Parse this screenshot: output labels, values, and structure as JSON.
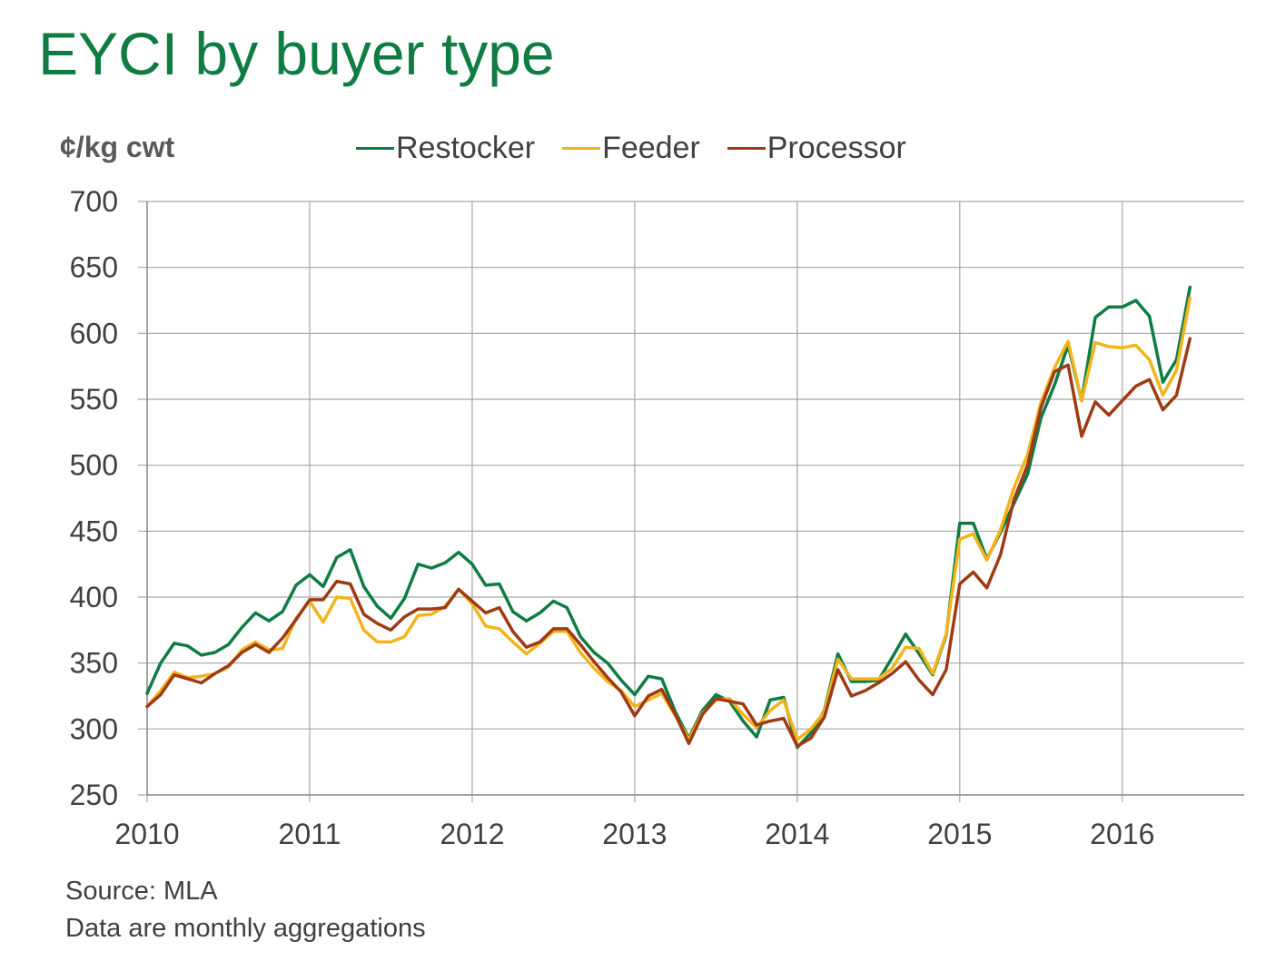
{
  "title": "EYCI by buyer type",
  "source_line1": "Source: MLA",
  "source_line2": "Data are monthly aggregations",
  "chart_data": {
    "type": "line",
    "title": "EYCI by buyer type",
    "ylabel": "¢/kg cwt",
    "xlabel": "",
    "ylim": [
      250,
      700
    ],
    "yticks": [
      "250",
      "300",
      "350",
      "400",
      "450",
      "500",
      "550",
      "600",
      "650",
      "700"
    ],
    "xlim": [
      2010,
      2016.75
    ],
    "xticks": [
      "2010",
      "2011",
      "2012",
      "2013",
      "2014",
      "2015",
      "2016"
    ],
    "grid": true,
    "legend_position": "top",
    "x_start": "2010-01",
    "x_step": "month",
    "series": [
      {
        "name": "Restocker",
        "color": "#0e7c43",
        "values": [
          327,
          350,
          365,
          363,
          356,
          358,
          364,
          377,
          388,
          382,
          389,
          409,
          417,
          408,
          430,
          436,
          408,
          393,
          384,
          399,
          425,
          422,
          426,
          434,
          425,
          409,
          410,
          389,
          382,
          388,
          397,
          392,
          370,
          358,
          350,
          337,
          326,
          340,
          338,
          313,
          293,
          314,
          326,
          321,
          306,
          294,
          322,
          324,
          286,
          297,
          314,
          357,
          336,
          336,
          337,
          354,
          372,
          357,
          341,
          371,
          456,
          456,
          429,
          449,
          471,
          493,
          536,
          561,
          591,
          549,
          612,
          620,
          620,
          625,
          613,
          563,
          580,
          635
        ]
      },
      {
        "name": "Feeder",
        "color": "#f3b41a",
        "values": [
          317,
          329,
          343,
          339,
          340,
          342,
          347,
          360,
          366,
          360,
          361,
          384,
          397,
          381,
          400,
          399,
          375,
          366,
          366,
          370,
          386,
          387,
          393,
          406,
          395,
          378,
          376,
          366,
          357,
          365,
          374,
          374,
          358,
          346,
          336,
          329,
          317,
          322,
          327,
          310,
          292,
          312,
          322,
          323,
          311,
          301,
          314,
          322,
          292,
          300,
          313,
          353,
          338,
          338,
          338,
          346,
          362,
          361,
          342,
          372,
          444,
          448,
          428,
          451,
          483,
          508,
          548,
          574,
          594,
          549,
          593,
          590,
          589,
          591,
          580,
          553,
          572,
          627
        ]
      },
      {
        "name": "Processor",
        "color": "#9e3a14",
        "values": [
          317,
          326,
          341,
          338,
          335,
          342,
          348,
          358,
          364,
          358,
          369,
          383,
          398,
          398,
          412,
          410,
          387,
          380,
          375,
          385,
          391,
          391,
          392,
          406,
          397,
          388,
          392,
          374,
          362,
          366,
          376,
          376,
          364,
          351,
          339,
          328,
          310,
          325,
          330,
          311,
          289,
          311,
          323,
          321,
          319,
          303,
          306,
          308,
          287,
          293,
          309,
          345,
          325,
          329,
          335,
          342,
          351,
          337,
          326,
          345,
          410,
          419,
          407,
          432,
          474,
          500,
          544,
          571,
          576,
          522,
          548,
          538,
          549,
          560,
          565,
          542,
          553,
          596
        ]
      }
    ]
  }
}
